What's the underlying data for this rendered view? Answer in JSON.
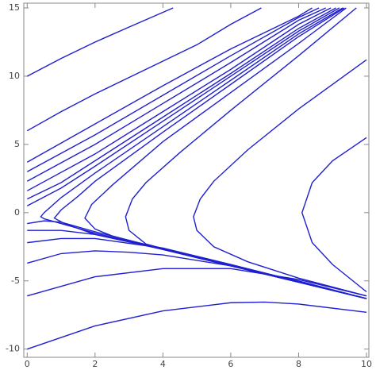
{
  "chart_data": {
    "type": "line",
    "color": "#1f1fd0",
    "xlim": [
      -0.1,
      10.07
    ],
    "ylim": [
      -10.6,
      15.35
    ],
    "xticks": [
      0,
      2,
      4,
      6,
      8,
      10
    ],
    "yticks": [
      -10,
      -5,
      0,
      5,
      10,
      15
    ],
    "series": [
      {
        "x": [
          0,
          1,
          2,
          3,
          4.3
        ],
        "values": [
          10,
          11.3,
          12.5,
          13.6,
          15
        ]
      },
      {
        "x": [
          0,
          1,
          2,
          3,
          4,
          5,
          6,
          6.9
        ],
        "values": [
          6,
          7.4,
          8.7,
          9.9,
          11.1,
          12.3,
          13.8,
          15
        ]
      },
      {
        "x": [
          0,
          2,
          4,
          6,
          8,
          8.4
        ],
        "values": [
          3.7,
          6.5,
          9.3,
          12,
          14.4,
          15
        ]
      },
      {
        "x": [
          0,
          2,
          4,
          6,
          8,
          8.6
        ],
        "values": [
          3,
          5.7,
          8.6,
          11.5,
          14.3,
          15
        ]
      },
      {
        "x": [
          0,
          2,
          4,
          6,
          8,
          8.8
        ],
        "values": [
          2.3,
          5,
          8,
          11,
          14.1,
          15
        ]
      },
      {
        "x": [
          0,
          2,
          4,
          6,
          8,
          8.95
        ],
        "values": [
          1.6,
          4.3,
          7.4,
          10.5,
          13.8,
          15
        ]
      },
      {
        "x": [
          0,
          1,
          2,
          4,
          6,
          8,
          9.1
        ],
        "values": [
          1,
          2.2,
          3.8,
          7,
          10.2,
          13.5,
          15
        ]
      },
      {
        "x": [
          0,
          1,
          2,
          4,
          6,
          8,
          9.2
        ],
        "values": [
          0.5,
          1.8,
          3.4,
          6.7,
          10,
          13.3,
          15
        ]
      },
      {
        "x": [
          10,
          8,
          6,
          4,
          2,
          1,
          0.5,
          0.4,
          0.5,
          1,
          2,
          4,
          6,
          8,
          9.3
        ],
        "values": [
          -6.3,
          -5.1,
          -3.9,
          -2.7,
          -1.5,
          -0.8,
          -0.45,
          -0.3,
          0,
          1.1,
          2.9,
          6.3,
          9.7,
          13.1,
          15
        ]
      },
      {
        "x": [
          10,
          8,
          6,
          4,
          2,
          1.1,
          0.8,
          1,
          1.5,
          2,
          4,
          6,
          8,
          9.35
        ],
        "values": [
          -6.3,
          -5.1,
          -3.9,
          -2.7,
          -1.6,
          -0.8,
          -0.4,
          0.2,
          1.2,
          2.3,
          5.9,
          9.4,
          12.9,
          15
        ]
      },
      {
        "x": [
          10,
          6,
          4,
          2.5,
          2,
          1.7,
          1.9,
          2.5,
          4,
          6,
          8,
          9.4
        ],
        "values": [
          -6.3,
          -3.9,
          -2.7,
          -1.7,
          -1.2,
          -0.4,
          0.6,
          2,
          5.2,
          8.8,
          12.4,
          15
        ]
      },
      {
        "x": [
          10,
          7,
          5,
          3.5,
          3,
          2.9,
          3.1,
          3.5,
          4.5,
          6,
          8,
          9.7
        ],
        "values": [
          -6.3,
          -4.5,
          -3.3,
          -2.3,
          -1.3,
          -0.3,
          1,
          2.2,
          4.4,
          7.5,
          11.5,
          15
        ]
      },
      {
        "x": [
          10,
          8,
          6.5,
          5.5,
          5,
          4.9,
          5.1,
          5.5,
          6.5,
          8,
          10
        ],
        "values": [
          -6.1,
          -4.8,
          -3.6,
          -2.5,
          -1.3,
          -0.3,
          1,
          2.3,
          4.6,
          7.6,
          11.2
        ]
      },
      {
        "x": [
          10,
          9,
          8.4,
          8.1,
          8.4,
          9,
          10
        ],
        "values": [
          -5.8,
          -3.8,
          -2.2,
          0,
          2.2,
          3.8,
          5.5
        ]
      },
      {
        "x": [
          0,
          0.5,
          1,
          2,
          4,
          6,
          10
        ],
        "values": [
          -0.8,
          -0.6,
          -0.7,
          -1.4,
          -2.65,
          -3.85,
          -6.3
        ]
      },
      {
        "x": [
          0,
          1,
          2,
          4,
          6,
          10
        ],
        "values": [
          -1.3,
          -1.3,
          -1.6,
          -2.6,
          -3.8,
          -6.3
        ]
      },
      {
        "x": [
          0,
          1,
          2,
          4,
          6,
          10
        ],
        "values": [
          -2.2,
          -1.9,
          -1.9,
          -2.6,
          -3.8,
          -6.3
        ]
      },
      {
        "x": [
          0,
          1,
          2,
          3,
          4,
          6,
          8,
          10
        ],
        "values": [
          -3.7,
          -3,
          -2.8,
          -2.9,
          -3.1,
          -3.9,
          -5,
          -6.3
        ]
      },
      {
        "x": [
          0,
          2,
          4,
          6,
          8,
          10
        ],
        "values": [
          -6.1,
          -4.7,
          -4.1,
          -4.1,
          -4.9,
          -6.1
        ]
      },
      {
        "x": [
          0,
          2,
          4,
          6,
          7,
          8,
          10
        ],
        "values": [
          -10,
          -8.3,
          -7.2,
          -6.6,
          -6.55,
          -6.7,
          -7.3
        ]
      }
    ]
  }
}
